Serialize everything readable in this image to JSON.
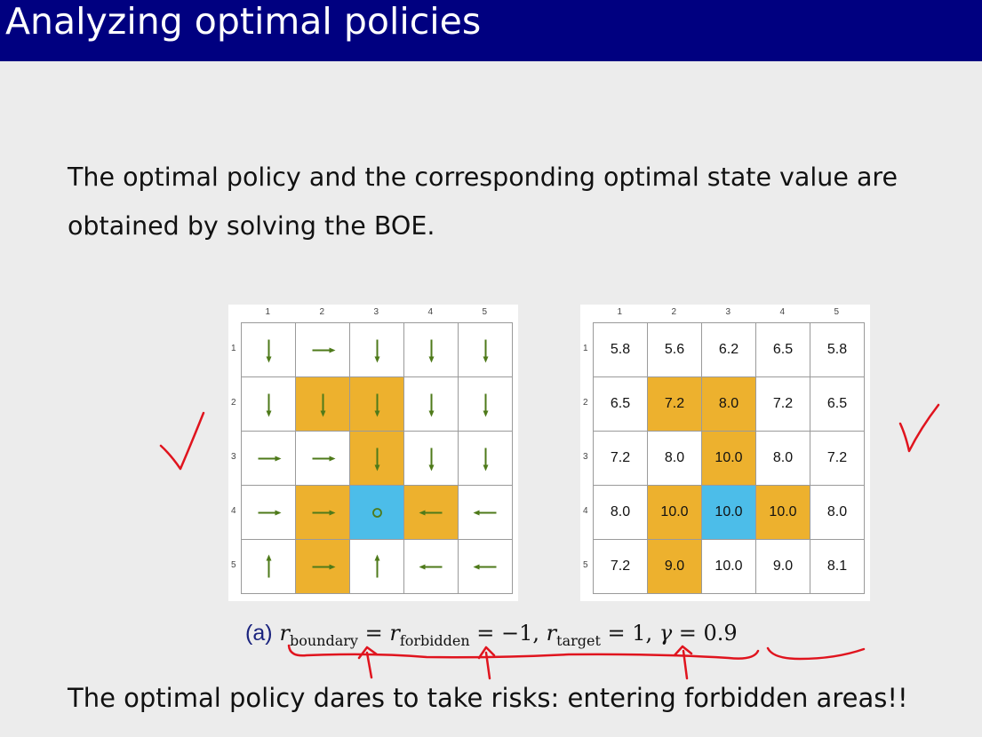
{
  "title": "Analyzing optimal policies",
  "intro_text": "The optimal policy and the corresponding optimal state value are obtained by solving the BOE.",
  "col_labels": [
    "1",
    "2",
    "3",
    "4",
    "5"
  ],
  "row_labels": [
    "1",
    "2",
    "3",
    "4",
    "5"
  ],
  "cell_types": [
    [
      "n",
      "n",
      "n",
      "n",
      "n"
    ],
    [
      "n",
      "f",
      "f",
      "n",
      "n"
    ],
    [
      "n",
      "n",
      "f",
      "n",
      "n"
    ],
    [
      "n",
      "f",
      "t",
      "f",
      "n"
    ],
    [
      "n",
      "f",
      "n",
      "n",
      "n"
    ]
  ],
  "policy": [
    [
      "down",
      "right",
      "down",
      "down",
      "down"
    ],
    [
      "down",
      "down",
      "down",
      "down",
      "down"
    ],
    [
      "right",
      "right",
      "down",
      "down",
      "down"
    ],
    [
      "right",
      "right",
      "stay",
      "left",
      "left"
    ],
    [
      "up",
      "right",
      "up",
      "left",
      "left"
    ]
  ],
  "values": [
    [
      "5.8",
      "5.6",
      "6.2",
      "6.5",
      "5.8"
    ],
    [
      "6.5",
      "7.2",
      "8.0",
      "7.2",
      "6.5"
    ],
    [
      "7.2",
      "8.0",
      "10.0",
      "8.0",
      "7.2"
    ],
    [
      "8.0",
      "10.0",
      "10.0",
      "10.0",
      "8.0"
    ],
    [
      "7.2",
      "9.0",
      "10.0",
      "9.0",
      "8.1"
    ]
  ],
  "colors": {
    "forbidden": "#EDB12E",
    "target": "#4CBDE9",
    "arrow": "#4E7A1A",
    "annotation": "#E0141E",
    "title_bg": "#000080"
  },
  "caption": {
    "label": "(a)",
    "r": "r",
    "sub_boundary": "boundary",
    "eq1": " = ",
    "sub_forbidden": "forbidden",
    "eq2": " = −1, ",
    "sub_target": "target",
    "eq3": " = 1, ",
    "gamma": "γ",
    "eq4": " = 0.9"
  },
  "bottom_text": "The optimal policy dares to take risks: entering forbidden areas!!"
}
